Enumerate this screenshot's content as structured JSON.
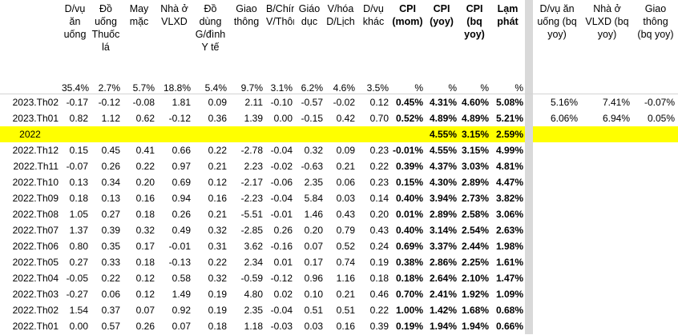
{
  "table": {
    "header": [
      "D/vụ ăn uống",
      "Đồ uống Thuốc lá",
      "May mặc",
      "Nhà ở VLXD",
      "Đồ dùng G/đình Y tế",
      "Giao thông",
      "B/Chính V/Thông",
      "Giáo dục",
      "V/hóa D/Lịch",
      "D/vụ khác",
      "CPI (mom)",
      "CPI (yoy)",
      "CPI (bq yoy)",
      "Lạm phát"
    ],
    "right_header": [
      "D/vụ ăn uống (bq yoy)",
      "Nhà ở VLXD (bq yoy)",
      "Giao thông (bq yoy)"
    ],
    "weights": [
      "35.4%",
      "2.7%",
      "5.7%",
      "18.8%",
      "5.4%",
      "9.7%",
      "3.1%",
      "6.2%",
      "4.6%",
      "3.5%",
      "%",
      "%",
      "%",
      "%"
    ],
    "rows": [
      {
        "label": "2023.Th02",
        "values": [
          "-0.17",
          "-0.12",
          "-0.08",
          "1.81",
          "0.09",
          "2.11",
          "-0.10",
          "-0.57",
          "-0.02",
          "0.12",
          "0.45%",
          "4.31%",
          "4.60%",
          "5.08%"
        ],
        "bq_yoy": [
          "5.16%",
          "7.41%",
          "-0.07%"
        ]
      },
      {
        "label": "2023.Th01",
        "values": [
          "0.82",
          "1.12",
          "0.62",
          "-0.12",
          "0.36",
          "1.39",
          "0.00",
          "-0.15",
          "0.42",
          "0.70",
          "0.52%",
          "4.89%",
          "4.89%",
          "5.21%"
        ],
        "bq_yoy": [
          "6.06%",
          "6.94%",
          "0.05%"
        ]
      },
      {
        "label": "2022",
        "highlight": true,
        "values": [
          null,
          null,
          null,
          null,
          null,
          null,
          null,
          null,
          null,
          null,
          null,
          "4.55%",
          "3.15%",
          "2.59%"
        ]
      },
      {
        "label": "2022.Th12",
        "values": [
          "0.15",
          "0.45",
          "0.41",
          "0.66",
          "0.22",
          "-2.78",
          "-0.04",
          "0.32",
          "0.09",
          "0.23",
          "-0.01%",
          "4.55%",
          "3.15%",
          "4.99%"
        ]
      },
      {
        "label": "2022.Th11",
        "values": [
          "-0.07",
          "0.26",
          "0.22",
          "0.97",
          "0.21",
          "2.23",
          "-0.02",
          "-0.63",
          "0.21",
          "0.22",
          "0.39%",
          "4.37%",
          "3.03%",
          "4.81%"
        ]
      },
      {
        "label": "2022.Th10",
        "values": [
          "0.13",
          "0.34",
          "0.20",
          "0.69",
          "0.12",
          "-2.17",
          "-0.06",
          "2.35",
          "0.06",
          "0.23",
          "0.15%",
          "4.30%",
          "2.89%",
          "4.47%"
        ]
      },
      {
        "label": "2022.Th09",
        "values": [
          "0.18",
          "0.13",
          "0.16",
          "0.94",
          "0.16",
          "-2.23",
          "-0.04",
          "5.84",
          "0.03",
          "0.14",
          "0.40%",
          "3.94%",
          "2.73%",
          "3.82%"
        ]
      },
      {
        "label": "2022.Th08",
        "values": [
          "1.05",
          "0.27",
          "0.18",
          "0.26",
          "0.21",
          "-5.51",
          "-0.01",
          "1.46",
          "0.43",
          "0.20",
          "0.01%",
          "2.89%",
          "2.58%",
          "3.06%"
        ]
      },
      {
        "label": "2022.Th07",
        "values": [
          "1.37",
          "0.39",
          "0.32",
          "0.49",
          "0.32",
          "-2.85",
          "0.26",
          "0.20",
          "0.79",
          "0.43",
          "0.40%",
          "3.14%",
          "2.54%",
          "2.63%"
        ]
      },
      {
        "label": "2022.Th06",
        "values": [
          "0.80",
          "0.35",
          "0.17",
          "-0.01",
          "0.31",
          "3.62",
          "-0.16",
          "0.07",
          "0.52",
          "0.24",
          "0.69%",
          "3.37%",
          "2.44%",
          "1.98%"
        ]
      },
      {
        "label": "2022.Th05",
        "values": [
          "0.27",
          "0.33",
          "0.18",
          "-0.13",
          "0.22",
          "2.34",
          "0.01",
          "0.17",
          "0.74",
          "0.19",
          "0.38%",
          "2.86%",
          "2.25%",
          "1.61%"
        ]
      },
      {
        "label": "2022.Th04",
        "values": [
          "-0.05",
          "0.22",
          "0.12",
          "0.58",
          "0.32",
          "-0.59",
          "-0.12",
          "0.96",
          "1.16",
          "0.18",
          "0.18%",
          "2.64%",
          "2.10%",
          "1.47%"
        ]
      },
      {
        "label": "2022.Th03",
        "values": [
          "-0.27",
          "0.06",
          "0.12",
          "1.49",
          "0.19",
          "4.80",
          "0.02",
          "0.10",
          "0.21",
          "0.46",
          "0.70%",
          "2.41%",
          "1.92%",
          "1.09%"
        ]
      },
      {
        "label": "2022.Th02",
        "values": [
          "1.54",
          "0.37",
          "0.07",
          "0.92",
          "0.19",
          "2.35",
          "-0.04",
          "0.51",
          "0.51",
          "0.22",
          "1.00%",
          "1.42%",
          "1.68%",
          "0.68%"
        ]
      },
      {
        "label": "2022.Th01",
        "values": [
          "0.00",
          "0.57",
          "0.26",
          "0.07",
          "0.18",
          "1.18",
          "-0.03",
          "0.03",
          "0.16",
          "0.39",
          "0.19%",
          "1.94%",
          "1.94%",
          "0.66%"
        ]
      }
    ]
  }
}
